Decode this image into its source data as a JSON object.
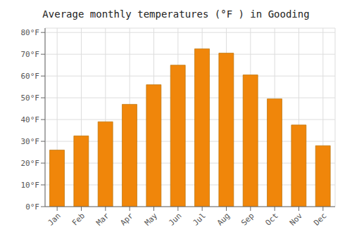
{
  "chart_data": {
    "type": "bar",
    "title": "Average monthly temperatures (°F ) in Gooding",
    "categories": [
      "Jan",
      "Feb",
      "Mar",
      "Apr",
      "May",
      "Jun",
      "Jul",
      "Aug",
      "Sep",
      "Oct",
      "Nov",
      "Dec"
    ],
    "values": [
      26,
      32.5,
      39,
      47,
      56,
      65,
      72.5,
      70.5,
      60.5,
      49.5,
      37.5,
      28
    ],
    "color": "#F0860A",
    "ylim": [
      0,
      82
    ],
    "yticks": [
      {
        "value": 0,
        "label": "0°F"
      },
      {
        "value": 10,
        "label": "10°F"
      },
      {
        "value": 20,
        "label": "20°F"
      },
      {
        "value": 30,
        "label": "30°F"
      },
      {
        "value": 40,
        "label": "40°F"
      },
      {
        "value": 50,
        "label": "50°F"
      },
      {
        "value": 60,
        "label": "60°F"
      },
      {
        "value": 70,
        "label": "70°F"
      },
      {
        "value": 80,
        "label": "80°F"
      }
    ],
    "grid": true
  }
}
